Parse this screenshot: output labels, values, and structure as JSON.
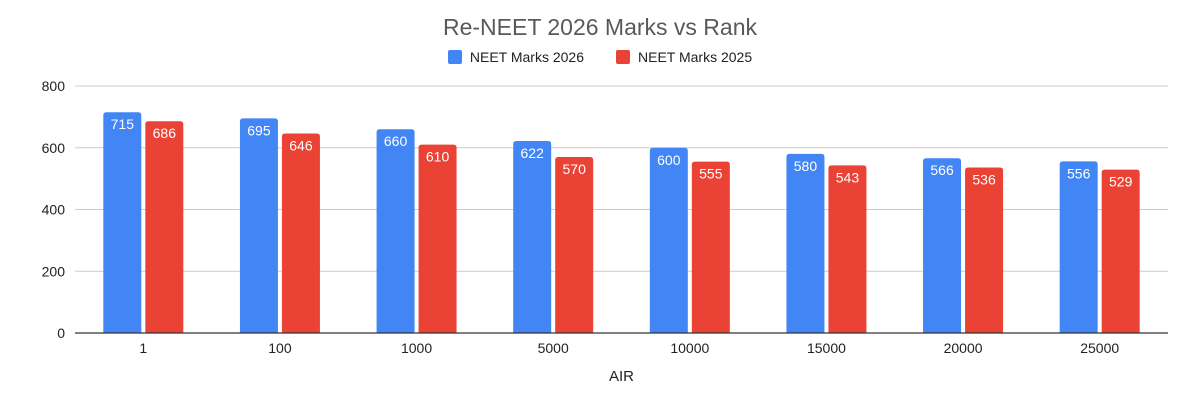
{
  "chart_data": {
    "type": "bar",
    "title": "Re-NEET 2026 Marks vs Rank",
    "xlabel": "AIR",
    "ylabel": "",
    "categories": [
      "1",
      "100",
      "1000",
      "5000",
      "10000",
      "15000",
      "20000",
      "25000"
    ],
    "series": [
      {
        "name": "NEET Marks 2026",
        "color": "#4285f4",
        "values": [
          715,
          695,
          660,
          622,
          600,
          580,
          566,
          556
        ]
      },
      {
        "name": "NEET Marks 2025",
        "color": "#ea4335",
        "values": [
          686,
          646,
          610,
          570,
          555,
          543,
          536,
          529
        ]
      }
    ],
    "ylim": [
      0,
      800
    ],
    "yticks": [
      0,
      200,
      400,
      600,
      800
    ],
    "grid": true,
    "legend_position": "top",
    "data_labels": true,
    "colors": {
      "gridline": "#cccccc",
      "axis": "#333333",
      "tick_text": "#222222",
      "label_text": "#ffffff"
    }
  }
}
